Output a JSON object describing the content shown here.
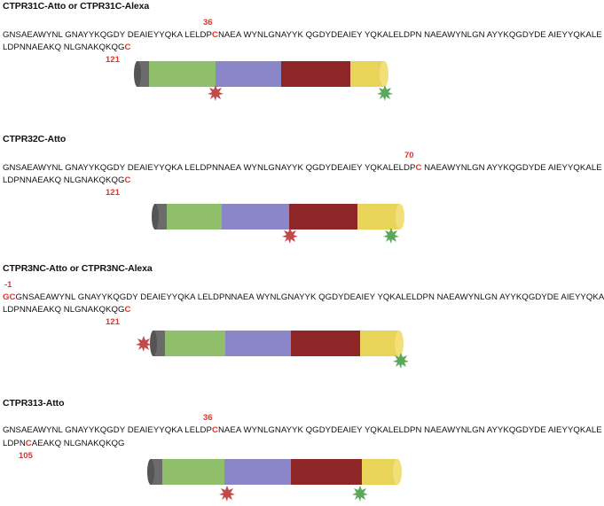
{
  "panels": [
    {
      "title": "CTPR31C-Atto or CTPR31C-Alexa",
      "line1": [
        "GNSAEAWYNL GNAYYKQGDY DEAIEYYQKA LELDP",
        "C",
        "NAEA WYNLGNAYYK QGDYDEAIEY YQKALELDPN NAEAWYNLGN AYYKQGDYDE AIEYYQKALE"
      ],
      "line2": [
        "LDPNNAEAKQ NLGNAKQKQG",
        "C",
        ""
      ],
      "num_top": "36",
      "num_bottom": "121"
    },
    {
      "title": "CTPR32C-Atto",
      "line1": [
        "GNSAEAWYNL GNAYYKQGDY DEAIEYYQKA LELDPNNAEA WYNLGNAYYK QGDYDEAIEY YQKALELDP",
        "C",
        " NAEAWYNLGN AYYKQGDYDE AIEYYQKALE"
      ],
      "line2": [
        "LDPNNAEAKQ NLGNAKQKQG",
        "C",
        ""
      ],
      "num_top": "70",
      "num_bottom": "121"
    },
    {
      "title": "CTPR3NC-Atto or CTPR3NC-Alexa",
      "line1": [
        "",
        "G",
        ""
      ],
      "line1b": [
        "",
        "C",
        "GNSAEAWYNL GNAYYKQGDY DEAIEYYQKA LELDPNNAEA WYNLGNAYYK QGDYDEAIEY YQKALELDPN NAEAWYNLGN AYYKQGDYDE AIEYYQKALE"
      ],
      "line2": [
        "LDPNNAEAKQ NLGNAKQKQG",
        "C",
        ""
      ],
      "num_top": "-1",
      "num_bottom": "121"
    },
    {
      "title": "CTPR313-Atto",
      "line1": [
        "GNSAEAWYNL GNAYYKQGDY DEAIEYYQKA LELDP",
        "C",
        "NAEA WYNLGNAYYK QGDYDEAIEY YQKALELDPN NAEAWYNLGN AYYKQGDYDE AIEYYQKALE"
      ],
      "line2": [
        "LDPN",
        "C",
        "AEAKQ NLGNAKQKQG"
      ],
      "num_top": "36",
      "num_bottom": "105"
    }
  ],
  "colors": {
    "cap": "#6b6b6b",
    "repeat1": "#8fbf6a",
    "repeat2": "#8b86c8",
    "repeat3": "#8e2628",
    "solvating": "#e9d45a",
    "acceptor_star": "#c24a4a",
    "donor_star": "#5aa85a"
  }
}
